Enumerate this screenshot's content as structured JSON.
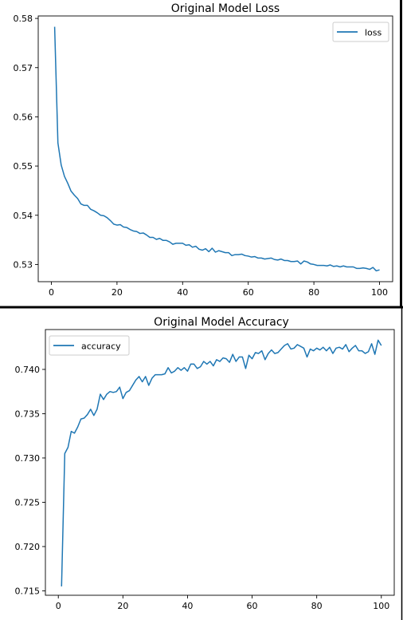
{
  "chart_data": [
    {
      "type": "line",
      "title": "Original Model Loss",
      "xlabel": "",
      "ylabel": "",
      "xlim": [
        -4,
        104
      ],
      "ylim": [
        0.5265,
        0.5805
      ],
      "xticks": [
        0,
        20,
        40,
        60,
        80,
        100
      ],
      "xtick_labels": [
        "0",
        "20",
        "40",
        "60",
        "80",
        "100"
      ],
      "yticks": [
        0.53,
        0.54,
        0.55,
        0.56,
        0.57,
        0.58
      ],
      "ytick_labels": [
        "0.53",
        "0.54",
        "0.55",
        "0.56",
        "0.57",
        "0.58"
      ],
      "legend": "top-right",
      "grid": false,
      "series": [
        {
          "name": "loss",
          "color": "#1f77b4",
          "x": [
            1,
            2,
            3,
            4,
            5,
            6,
            7,
            8,
            9,
            10,
            11,
            12,
            13,
            14,
            15,
            16,
            17,
            18,
            19,
            20,
            21,
            22,
            23,
            24,
            25,
            26,
            27,
            28,
            29,
            30,
            31,
            32,
            33,
            34,
            35,
            36,
            37,
            38,
            39,
            40,
            41,
            42,
            43,
            44,
            45,
            46,
            47,
            48,
            49,
            50,
            51,
            52,
            53,
            54,
            55,
            56,
            57,
            58,
            59,
            60,
            61,
            62,
            63,
            64,
            65,
            66,
            67,
            68,
            69,
            70,
            71,
            72,
            73,
            74,
            75,
            76,
            77,
            78,
            79,
            80,
            81,
            82,
            83,
            84,
            85,
            86,
            87,
            88,
            89,
            90,
            91,
            92,
            93,
            94,
            95,
            96,
            97,
            98,
            99,
            100
          ],
          "values": [
            0.5783,
            0.5547,
            0.5502,
            0.5479,
            0.5465,
            0.5449,
            0.5441,
            0.5434,
            0.5423,
            0.542,
            0.542,
            0.5412,
            0.5409,
            0.5405,
            0.54,
            0.5399,
            0.5395,
            0.5389,
            0.5382,
            0.538,
            0.5381,
            0.5376,
            0.5375,
            0.5371,
            0.5368,
            0.5367,
            0.5363,
            0.5364,
            0.536,
            0.5355,
            0.5355,
            0.5351,
            0.5353,
            0.5349,
            0.5349,
            0.5346,
            0.5341,
            0.5343,
            0.5343,
            0.5343,
            0.5339,
            0.534,
            0.5335,
            0.5337,
            0.5331,
            0.5329,
            0.5332,
            0.5326,
            0.5333,
            0.5325,
            0.5328,
            0.5326,
            0.5324,
            0.5324,
            0.5318,
            0.532,
            0.532,
            0.5321,
            0.5318,
            0.5317,
            0.5315,
            0.5316,
            0.5313,
            0.5313,
            0.5311,
            0.5312,
            0.5313,
            0.531,
            0.5309,
            0.5311,
            0.5308,
            0.5308,
            0.5306,
            0.5306,
            0.5307,
            0.5301,
            0.5307,
            0.5305,
            0.5301,
            0.53,
            0.5298,
            0.5298,
            0.5298,
            0.5297,
            0.5299,
            0.5296,
            0.5297,
            0.5295,
            0.5297,
            0.5295,
            0.5295,
            0.5295,
            0.5292,
            0.5292,
            0.5293,
            0.5292,
            0.529,
            0.5294,
            0.5287,
            0.5289
          ]
        }
      ]
    },
    {
      "type": "line",
      "title": "Original Model Accuracy",
      "xlabel": "",
      "ylabel": "",
      "xlim": [
        -4,
        104
      ],
      "ylim": [
        0.7145,
        0.7445
      ],
      "xticks": [
        0,
        20,
        40,
        60,
        80,
        100
      ],
      "xtick_labels": [
        "0",
        "20",
        "40",
        "60",
        "80",
        "100"
      ],
      "yticks": [
        0.715,
        0.72,
        0.725,
        0.73,
        0.735,
        0.74
      ],
      "ytick_labels": [
        "0.715",
        "0.720",
        "0.725",
        "0.730",
        "0.735",
        "0.740"
      ],
      "legend": "top-left",
      "grid": false,
      "series": [
        {
          "name": "accuracy",
          "color": "#1f77b4",
          "x": [
            1,
            2,
            3,
            4,
            5,
            6,
            7,
            8,
            9,
            10,
            11,
            12,
            13,
            14,
            15,
            16,
            17,
            18,
            19,
            20,
            21,
            22,
            23,
            24,
            25,
            26,
            27,
            28,
            29,
            30,
            31,
            32,
            33,
            34,
            35,
            36,
            37,
            38,
            39,
            40,
            41,
            42,
            43,
            44,
            45,
            46,
            47,
            48,
            49,
            50,
            51,
            52,
            53,
            54,
            55,
            56,
            57,
            58,
            59,
            60,
            61,
            62,
            63,
            64,
            65,
            66,
            67,
            68,
            69,
            70,
            71,
            72,
            73,
            74,
            75,
            76,
            77,
            78,
            79,
            80,
            81,
            82,
            83,
            84,
            85,
            86,
            87,
            88,
            89,
            90,
            91,
            92,
            93,
            94,
            95,
            96,
            97,
            98,
            99,
            100
          ],
          "values": [
            0.7155,
            0.7305,
            0.7312,
            0.733,
            0.7328,
            0.7335,
            0.7344,
            0.7345,
            0.7349,
            0.7355,
            0.7348,
            0.7355,
            0.7372,
            0.7366,
            0.7372,
            0.7375,
            0.7374,
            0.7375,
            0.738,
            0.7367,
            0.7374,
            0.7376,
            0.7382,
            0.7388,
            0.7392,
            0.7386,
            0.7392,
            0.7382,
            0.739,
            0.7394,
            0.7394,
            0.7394,
            0.7395,
            0.7402,
            0.7396,
            0.7398,
            0.7402,
            0.7399,
            0.7402,
            0.7398,
            0.7406,
            0.7406,
            0.7401,
            0.7403,
            0.7409,
            0.7406,
            0.7409,
            0.7404,
            0.7411,
            0.7409,
            0.7413,
            0.7412,
            0.7408,
            0.7417,
            0.7409,
            0.7414,
            0.7414,
            0.7401,
            0.7416,
            0.7412,
            0.7419,
            0.7418,
            0.7421,
            0.7411,
            0.7418,
            0.7422,
            0.7418,
            0.7419,
            0.7423,
            0.7427,
            0.7429,
            0.7423,
            0.7424,
            0.7428,
            0.7426,
            0.7424,
            0.7414,
            0.7423,
            0.7421,
            0.7424,
            0.7422,
            0.7425,
            0.7421,
            0.7425,
            0.7418,
            0.7424,
            0.7425,
            0.7423,
            0.7428,
            0.742,
            0.7424,
            0.7427,
            0.7421,
            0.7421,
            0.7418,
            0.742,
            0.7429,
            0.7417,
            0.7433,
            0.7427
          ]
        }
      ]
    }
  ]
}
